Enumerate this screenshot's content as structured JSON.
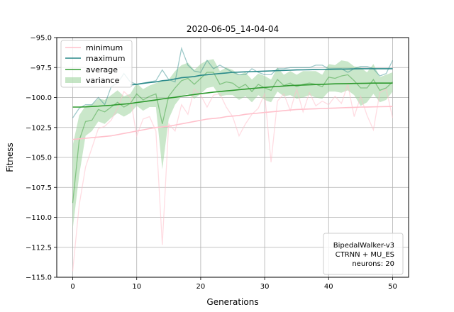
{
  "chart_data": {
    "type": "line",
    "title": "2020-06-05_14-04-04",
    "xlabel": "Generations",
    "ylabel": "Fitness",
    "xlim": [
      -2.5,
      52.5
    ],
    "ylim": [
      -115.0,
      -95.0
    ],
    "xticks": [
      0,
      10,
      20,
      30,
      40,
      50
    ],
    "yticks": [
      -115.0,
      -112.5,
      -110.0,
      -107.5,
      -105.0,
      -102.5,
      -100.0,
      -97.5,
      -95.0
    ],
    "xtick_labels": [
      "0",
      "10",
      "20",
      "30",
      "40",
      "50"
    ],
    "ytick_labels": [
      "−115.0",
      "−112.5",
      "−110.0",
      "−107.5",
      "−105.0",
      "−102.5",
      "−100.0",
      "−97.5",
      "−95.0"
    ],
    "grid": true,
    "legend_position": "top-left",
    "colors": {
      "minimum": "#ffc0cb",
      "maximum": "#2a8a8a",
      "average": "#2e9a2e",
      "variance": "#9fd49f"
    },
    "x": [
      0,
      1,
      2,
      3,
      4,
      5,
      6,
      7,
      8,
      9,
      10,
      11,
      12,
      13,
      14,
      15,
      16,
      17,
      18,
      19,
      20,
      21,
      22,
      23,
      24,
      25,
      26,
      27,
      28,
      29,
      30,
      31,
      32,
      33,
      34,
      35,
      36,
      37,
      38,
      39,
      40,
      41,
      42,
      43,
      44,
      45,
      46,
      47,
      48,
      49,
      50
    ],
    "series": [
      {
        "name": "minimum",
        "raw": [
          -114.5,
          -109.0,
          -105.8,
          -104.2,
          -102.6,
          -102.4,
          -101.9,
          -100.9,
          -99.5,
          -100.0,
          -103.2,
          -101.8,
          -101.6,
          -102.8,
          -112.3,
          -102.2,
          -102.8,
          -100.6,
          -101.4,
          -99.3,
          -99.8,
          -100.8,
          -99.8,
          -99.7,
          -100.8,
          -101.6,
          -103.2,
          -102.2,
          -101.4,
          -100.9,
          -99.7,
          -105.4,
          -100.3,
          -99.7,
          -101.1,
          -99.3,
          -101.2,
          -99.6,
          -100.7,
          -100.3,
          -100.6,
          -99.9,
          -100.5,
          -98.9,
          -101.6,
          -99.9,
          -101.5,
          -102.7,
          -99.6,
          -99.3,
          -101.7
        ],
        "smooth": [
          -103.5,
          -103.45,
          -103.4,
          -103.35,
          -103.3,
          -103.25,
          -103.2,
          -103.1,
          -103.0,
          -102.9,
          -102.8,
          -102.7,
          -102.6,
          -102.5,
          -102.45,
          -102.4,
          -102.3,
          -102.2,
          -102.1,
          -102.0,
          -101.9,
          -101.8,
          -101.75,
          -101.7,
          -101.6,
          -101.55,
          -101.5,
          -101.4,
          -101.35,
          -101.3,
          -101.25,
          -101.2,
          -101.15,
          -101.1,
          -101.05,
          -101.0,
          -100.98,
          -100.96,
          -100.94,
          -100.92,
          -100.9,
          -100.88,
          -100.86,
          -100.84,
          -100.82,
          -100.8,
          -100.79,
          -100.78,
          -100.77,
          -100.76,
          -100.75
        ]
      },
      {
        "name": "maximum",
        "raw": [
          -101.7,
          -100.9,
          -100.6,
          -100.6,
          -100.0,
          -100.6,
          -99.1,
          -98.8,
          -98.0,
          -98.7,
          -98.9,
          -98.8,
          -98.7,
          -98.6,
          -97.7,
          -98.5,
          -98.7,
          -95.9,
          -97.3,
          -97.8,
          -97.9,
          -96.9,
          -97.6,
          -97.3,
          -97.6,
          -97.9,
          -98.1,
          -98.1,
          -97.6,
          -97.9,
          -98.1,
          -98.1,
          -97.6,
          -97.6,
          -97.5,
          -97.5,
          -97.5,
          -97.5,
          -97.3,
          -97.3,
          -97.6,
          -97.6,
          -97.6,
          -97.9,
          -97.6,
          -97.4,
          -97.4,
          -97.6,
          -98.2,
          -98.0,
          -96.9
        ],
        "smooth": [
          null,
          null,
          null,
          null,
          null,
          null,
          null,
          null,
          null,
          -98.95,
          -98.9,
          -98.82,
          -98.75,
          -98.7,
          -98.6,
          -98.55,
          -98.45,
          -98.35,
          -98.3,
          -98.25,
          -98.15,
          -98.1,
          -98.05,
          -98.0,
          -97.95,
          -97.9,
          -97.88,
          -97.86,
          -97.84,
          -97.82,
          -97.8,
          -97.78,
          -97.76,
          -97.74,
          -97.72,
          -97.7,
          -97.69,
          -97.68,
          -97.67,
          -97.66,
          -97.65,
          -97.64,
          -97.63,
          -97.62,
          -97.61,
          -97.6,
          -97.6,
          -97.6,
          -97.6,
          -97.6,
          -97.6
        ]
      },
      {
        "name": "average",
        "raw": [
          -108.8,
          -103.6,
          -102.0,
          -101.9,
          -101.0,
          -101.2,
          -100.8,
          -100.4,
          -100.8,
          -100.5,
          -99.7,
          -100.2,
          -99.9,
          -99.7,
          -102.2,
          -99.9,
          -99.2,
          -98.6,
          -98.4,
          -98.9,
          -98.4,
          -97.9,
          -97.9,
          -98.9,
          -98.7,
          -98.8,
          -99.2,
          -98.9,
          -99.5,
          -98.9,
          -99.2,
          -99.4,
          -98.5,
          -99.0,
          -98.8,
          -99.1,
          -98.9,
          -98.8,
          -98.9,
          -99.1,
          -98.3,
          -98.4,
          -98.2,
          -98.1,
          -98.6,
          -99.2,
          -99.2,
          -98.5,
          -99.4,
          -99.2,
          -98.7
        ],
        "smooth": [
          -100.8,
          -100.8,
          -100.78,
          -100.75,
          -100.72,
          -100.68,
          -100.65,
          -100.6,
          -100.55,
          -100.5,
          -100.42,
          -100.35,
          -100.28,
          -100.2,
          -100.12,
          -100.05,
          -99.98,
          -99.9,
          -99.82,
          -99.75,
          -99.68,
          -99.62,
          -99.55,
          -99.5,
          -99.45,
          -99.4,
          -99.35,
          -99.3,
          -99.25,
          -99.2,
          -99.16,
          -99.12,
          -99.08,
          -99.04,
          -99.0,
          -98.98,
          -98.96,
          -98.94,
          -98.92,
          -98.9,
          -98.88,
          -98.86,
          -98.85,
          -98.84,
          -98.83,
          -98.82,
          -98.81,
          -98.8,
          -98.8,
          -98.8,
          -98.8
        ]
      },
      {
        "name": "variance",
        "lower": [
          -111.0,
          -106.5,
          -103.2,
          -102.8,
          -102.0,
          -102.2,
          -101.7,
          -101.3,
          -101.6,
          -101.3,
          -100.7,
          -101.1,
          -100.8,
          -100.8,
          -106.0,
          -101.8,
          -100.6,
          -99.9,
          -99.7,
          -100.1,
          -99.7,
          -99.2,
          -99.1,
          -99.9,
          -99.8,
          -99.8,
          -100.2,
          -99.9,
          -100.4,
          -99.8,
          -100.2,
          -100.4,
          -99.5,
          -99.9,
          -99.8,
          -100.1,
          -100.0,
          -99.8,
          -100.0,
          -100.1,
          -99.5,
          -99.5,
          -99.6,
          -99.4,
          -99.8,
          -100.7,
          -100.4,
          -99.7,
          -100.4,
          -100.2,
          -99.5
        ],
        "upper": [
          -104.0,
          -101.5,
          -100.7,
          -100.6,
          -100.1,
          -100.2,
          -99.8,
          -99.4,
          -99.9,
          -99.7,
          -98.8,
          -99.3,
          -99.0,
          -98.8,
          -98.6,
          -98.5,
          -97.8,
          -97.3,
          -97.1,
          -97.7,
          -97.2,
          -96.9,
          -96.8,
          -97.8,
          -97.5,
          -97.7,
          -98.1,
          -97.9,
          -98.5,
          -98.0,
          -98.2,
          -98.5,
          -97.5,
          -98.1,
          -97.8,
          -98.1,
          -97.8,
          -97.8,
          -97.8,
          -98.1,
          -97.2,
          -97.3,
          -96.9,
          -97.0,
          -97.4,
          -97.5,
          -97.9,
          -97.2,
          -98.3,
          -98.1,
          -97.9
        ]
      }
    ]
  },
  "infobox": {
    "line1": "BipedalWalker-v3",
    "line2": "CTRNN + MU_ES",
    "line3": "neurons: 20"
  }
}
